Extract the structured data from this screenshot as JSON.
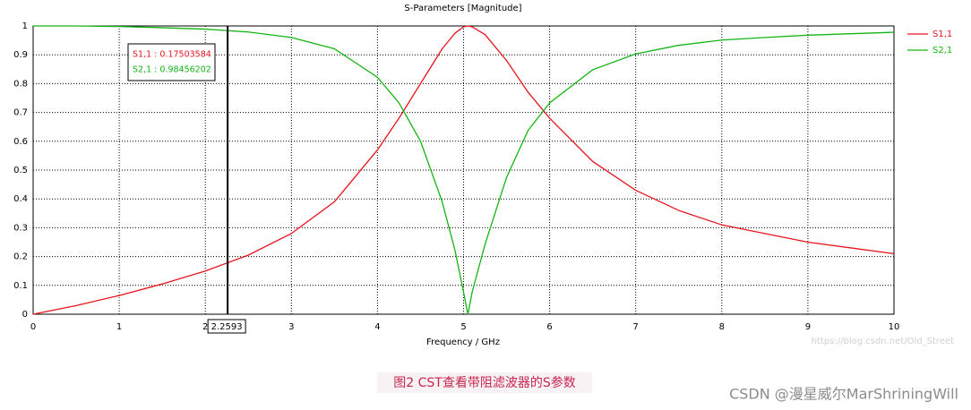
{
  "chart_data": {
    "type": "line",
    "title": "S-Parameters [Magnitude]",
    "x_label": "Frequency / GHz",
    "x": [
      0,
      0.5,
      1,
      1.5,
      2,
      2.5,
      3,
      3.5,
      4,
      4.25,
      4.5,
      4.75,
      4.9,
      5,
      5.05,
      5.1,
      5.25,
      5.5,
      5.75,
      6,
      6.5,
      7,
      7.5,
      8,
      8.5,
      9,
      9.5,
      10
    ],
    "series": [
      {
        "name": "S1,1",
        "color": "#e8141e",
        "values": [
          0,
          0.03,
          0.065,
          0.105,
          0.15,
          0.205,
          0.28,
          0.39,
          0.57,
          0.68,
          0.8,
          0.92,
          0.975,
          0.997,
          1,
          0.997,
          0.97,
          0.88,
          0.77,
          0.68,
          0.53,
          0.43,
          0.36,
          0.31,
          0.28,
          0.25,
          0.23,
          0.21
        ]
      },
      {
        "name": "S2,1",
        "color": "#14b414",
        "values": [
          1,
          1,
          0.998,
          0.994,
          0.989,
          0.979,
          0.96,
          0.921,
          0.822,
          0.733,
          0.6,
          0.392,
          0.222,
          0.077,
          0,
          0.077,
          0.243,
          0.475,
          0.638,
          0.733,
          0.848,
          0.903,
          0.933,
          0.951,
          0.96,
          0.968,
          0.973,
          0.978
        ]
      }
    ],
    "xlim": [
      0,
      10
    ],
    "ylim": [
      0,
      1
    ],
    "xticks": [
      0,
      1,
      2,
      3,
      4,
      5,
      6,
      7,
      8,
      9,
      10
    ],
    "yticks": [
      0,
      0.1,
      0.2,
      0.3,
      0.4,
      0.5,
      0.6,
      0.7,
      0.8,
      0.9,
      1
    ],
    "grid": true,
    "legend": "right",
    "marker": {
      "x": 2.2593,
      "annotations": [
        "S1,1 : 0.17503584",
        "S2,1 : 0.98456202"
      ]
    }
  },
  "caption": "图2  CST查看带阻滤波器的S参数",
  "url_watermark": "https://blog.csdn.net/Old_Street",
  "footer_watermark": "CSDN @漫星威尔MarShriningWill"
}
